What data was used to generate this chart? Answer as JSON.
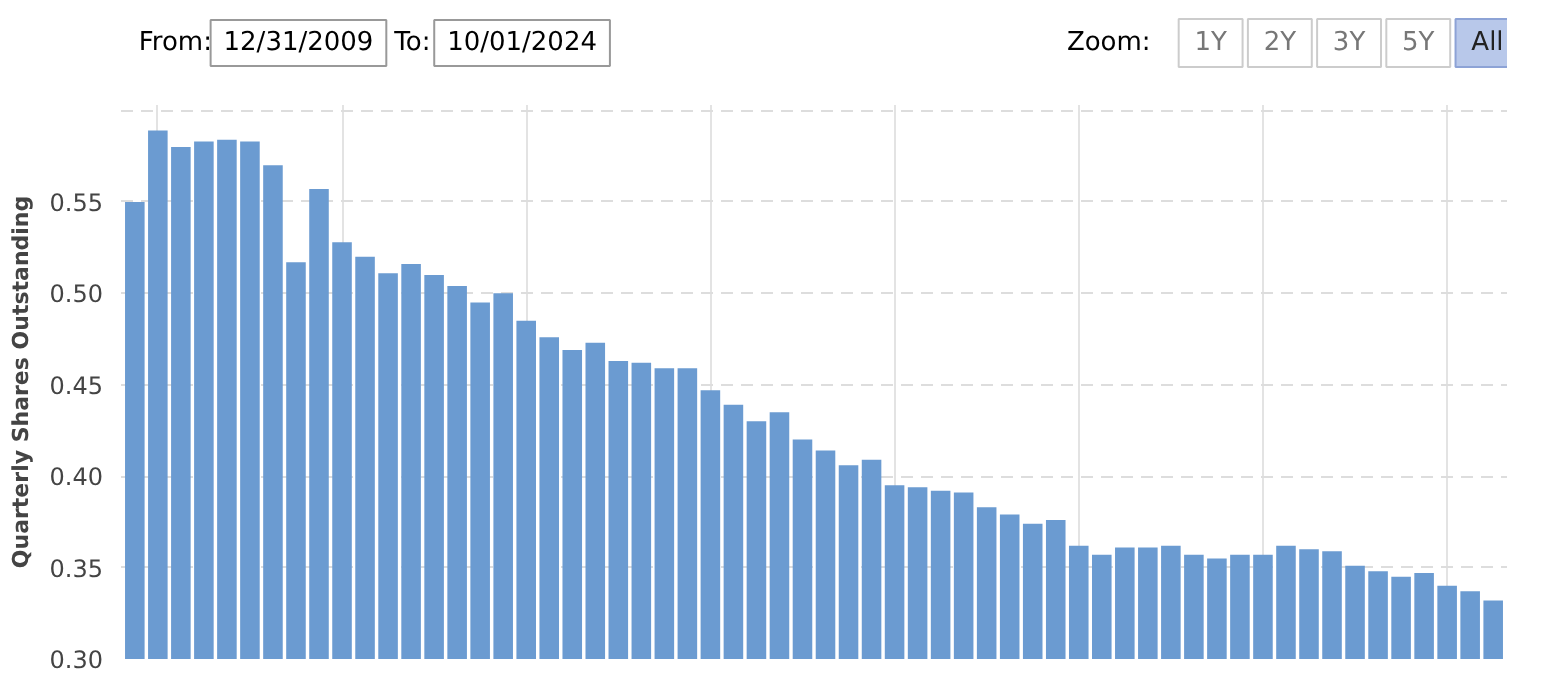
{
  "chart_data": {
    "type": "bar",
    "ylabel": "Quarterly Shares Outstanding",
    "categories": [
      null,
      null,
      null,
      null,
      null,
      null,
      null,
      null,
      null,
      null,
      null,
      null,
      null,
      null,
      null,
      null,
      null,
      null,
      null,
      null,
      null,
      null,
      null,
      null,
      null,
      null,
      null,
      null,
      null,
      null,
      null,
      null,
      null,
      null,
      null,
      null,
      null,
      null,
      null,
      null,
      null,
      null,
      null,
      null,
      null,
      null,
      null,
      null,
      null,
      null,
      null,
      null,
      null,
      null,
      null,
      null,
      null,
      null,
      null,
      null
    ],
    "values": [
      0.55,
      0.589,
      0.58,
      0.583,
      0.584,
      0.583,
      0.57,
      0.517,
      0.557,
      0.528,
      0.52,
      0.511,
      0.516,
      0.51,
      0.504,
      0.495,
      0.5,
      0.485,
      0.476,
      0.469,
      0.473,
      0.463,
      0.462,
      0.459,
      0.459,
      0.447,
      0.439,
      0.43,
      0.435,
      0.42,
      0.414,
      0.406,
      0.409,
      0.395,
      0.394,
      0.392,
      0.391,
      0.383,
      0.379,
      0.374,
      0.376,
      0.362,
      0.357,
      0.361,
      0.361,
      0.362,
      0.357,
      0.355,
      0.357,
      0.357,
      0.362,
      0.36,
      0.359,
      0.351,
      0.348,
      0.345,
      0.347,
      0.34,
      0.337,
      0.332
    ],
    "color": "#6b9bd1",
    "ylim": [
      0.3,
      0.603
    ],
    "yticks": [
      {
        "value": 0.3,
        "label": "0.30"
      },
      {
        "value": 0.35,
        "label": "0.35"
      },
      {
        "value": 0.4,
        "label": "0.40"
      },
      {
        "value": 0.45,
        "label": "0.45"
      },
      {
        "value": 0.5,
        "label": "0.50"
      },
      {
        "value": 0.55,
        "label": "0.55"
      },
      {
        "value": 0.6,
        "label": null
      }
    ],
    "grid": true,
    "annotations": [
      "From:",
      "12/31/2009",
      "To:",
      "10/01/2024",
      "Zoom:",
      "1Y",
      "2Y",
      "3Y",
      "5Y",
      "All"
    ]
  }
}
